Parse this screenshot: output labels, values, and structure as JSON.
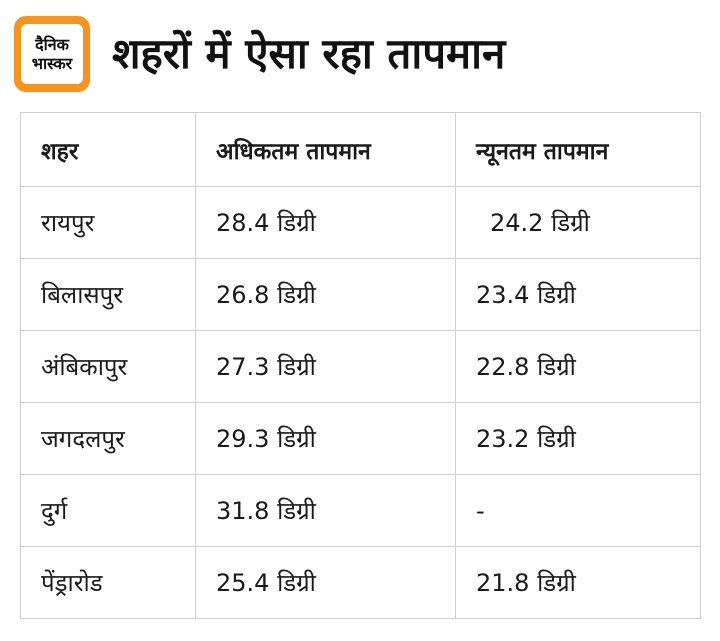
{
  "logo": {
    "line1": "दैनिक",
    "line2": "भास्कर"
  },
  "title": "शहरों में ऐसा रहा तापमान",
  "table": {
    "headers": [
      "शहर",
      "अधिकतम तापमान",
      "न्यूनतम तापमान"
    ],
    "rows": [
      {
        "city": "रायपुर",
        "max": "28.4 डिग्री",
        "min": "24.2 डिग्री"
      },
      {
        "city": "बिलासपुर",
        "max": "26.8 डिग्री",
        "min": "23.4 डिग्री"
      },
      {
        "city": "अंबिकापुर",
        "max": "27.3 डिग्री",
        "min": "22.8 डिग्री"
      },
      {
        "city": "जगदलपुर",
        "max": "29.3 डिग्री",
        "min": "23.2 डिग्री"
      },
      {
        "city": "दुर्ग",
        "max": "31.8 डिग्री",
        "min": "-"
      },
      {
        "city": "पेंड्रारोड",
        "max": "25.4 डिग्री",
        "min": "21.8 डिग्री"
      }
    ]
  }
}
